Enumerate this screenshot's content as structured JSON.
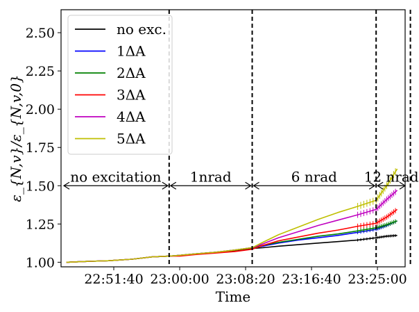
{
  "chart_data": {
    "type": "line",
    "xlabel": "Time",
    "ylabel": "ε_{N,v}/ε_{N,v,0}",
    "xlim": [
      "22:45:00",
      "23:28:30"
    ],
    "ylim": [
      0.97,
      2.65
    ],
    "x_ticks": [
      "22:51:40",
      "23:00:00",
      "23:08:20",
      "23:16:40",
      "23:25:00"
    ],
    "y_ticks": [
      "1.00",
      "1.25",
      "1.50",
      "1.75",
      "2.00",
      "2.25",
      "2.50"
    ],
    "legend_position": "top-left",
    "grid": false,
    "x": [
      "22:45:40",
      "22:48:00",
      "22:51:00",
      "22:54:00",
      "22:56:30",
      "22:58:40",
      "23:00:00",
      "23:02:00",
      "23:04:30",
      "23:07:00",
      "23:09:10",
      "23:10:30",
      "23:12:30",
      "23:15:00",
      "23:17:30",
      "23:20:00",
      "23:22:30",
      "23:24:50",
      "23:26:10",
      "23:27:30"
    ],
    "series": [
      {
        "name": "no exc.",
        "color": "#000000",
        "values": [
          1.0,
          1.005,
          1.01,
          1.02,
          1.035,
          1.04,
          1.045,
          1.055,
          1.065,
          1.075,
          1.09,
          1.095,
          1.105,
          1.115,
          1.125,
          1.135,
          1.145,
          1.16,
          1.17,
          1.175
        ]
      },
      {
        "name": "1ΔA",
        "color": "#0000ff",
        "values": [
          1.0,
          1.005,
          1.01,
          1.02,
          1.035,
          1.04,
          1.045,
          1.055,
          1.065,
          1.08,
          1.095,
          1.105,
          1.125,
          1.145,
          1.16,
          1.175,
          1.195,
          1.215,
          1.24,
          1.27
        ]
      },
      {
        "name": "2ΔA",
        "color": "#008000",
        "values": [
          1.0,
          1.005,
          1.01,
          1.02,
          1.035,
          1.04,
          1.045,
          1.055,
          1.065,
          1.08,
          1.095,
          1.11,
          1.13,
          1.15,
          1.17,
          1.185,
          1.205,
          1.225,
          1.245,
          1.27
        ]
      },
      {
        "name": "3ΔA",
        "color": "#ff0000",
        "values": [
          1.0,
          1.005,
          1.01,
          1.02,
          1.035,
          1.04,
          1.04,
          1.05,
          1.06,
          1.07,
          1.085,
          1.11,
          1.14,
          1.165,
          1.19,
          1.21,
          1.235,
          1.255,
          1.295,
          1.345
        ]
      },
      {
        "name": "4ΔA",
        "color": "#bf00bf",
        "values": [
          1.0,
          1.005,
          1.01,
          1.02,
          1.035,
          1.04,
          1.045,
          1.055,
          1.065,
          1.08,
          1.095,
          1.12,
          1.16,
          1.2,
          1.24,
          1.275,
          1.31,
          1.345,
          1.41,
          1.47
        ]
      },
      {
        "name": "5ΔA",
        "color": "#bfbf00",
        "values": [
          1.0,
          1.005,
          1.01,
          1.02,
          1.035,
          1.04,
          1.045,
          1.055,
          1.065,
          1.08,
          1.095,
          1.13,
          1.18,
          1.23,
          1.28,
          1.325,
          1.365,
          1.405,
          1.5,
          1.61
        ]
      }
    ],
    "vlines": [
      "22:58:40",
      "23:09:10",
      "23:24:50",
      "23:29:10"
    ],
    "annotations": [
      {
        "text": "no excitation",
        "from": "22:45:00",
        "to": "22:58:40",
        "y": 1.5
      },
      {
        "text": "1nrad",
        "from": "22:58:40",
        "to": "23:09:10",
        "y": 1.5
      },
      {
        "text": "6 nrad",
        "from": "23:09:10",
        "to": "23:24:50",
        "y": 1.5
      },
      {
        "text": "12 nrad",
        "from": "23:24:50",
        "to": "23:29:10",
        "y": 1.5
      }
    ]
  }
}
